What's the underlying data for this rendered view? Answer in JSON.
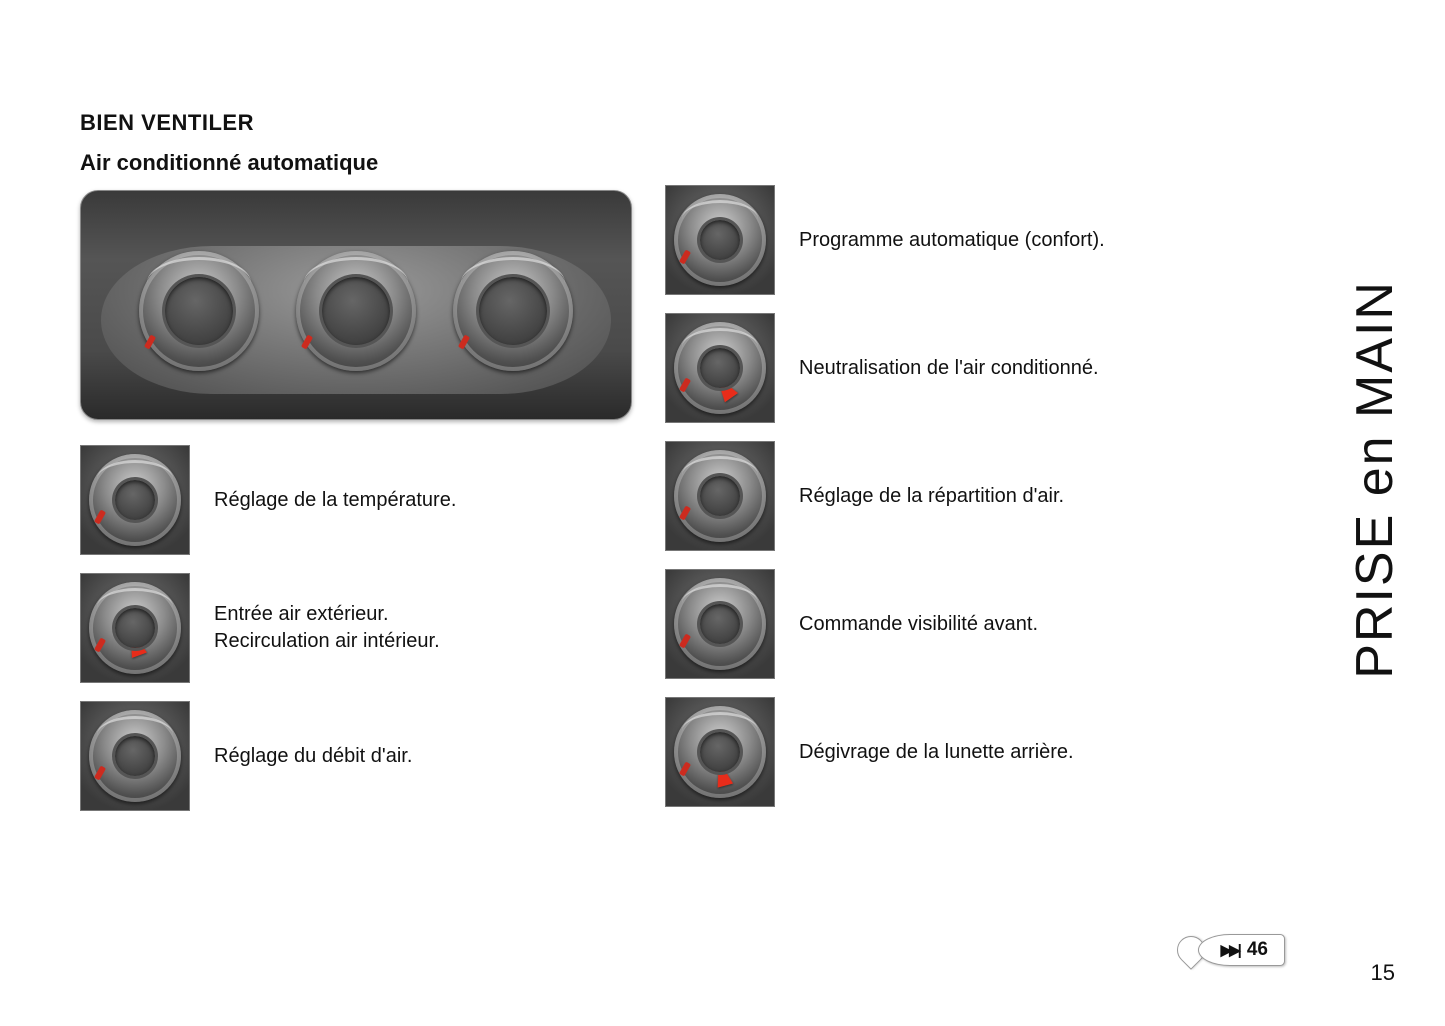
{
  "heading": "BIEN VENTILER",
  "subheading": "Air conditionné automatique",
  "side_tab": "PRISE en MAIN",
  "page_ref": {
    "icon": "▶▶|",
    "number": "46"
  },
  "page_number": "15",
  "colors": {
    "text": "#111111",
    "background": "#ffffff",
    "border": "#888888",
    "red_marker": "#cc2b1f",
    "arrow": "#e82c1a"
  },
  "left_items": [
    {
      "id": "temp",
      "label": "Réglage de la température.",
      "arrow": false,
      "type": "temperature-dial"
    },
    {
      "id": "recirc",
      "label": "Entrée air extérieur.\nRecirculation air intérieur.",
      "arrow": true,
      "arrow_pos": "center",
      "type": "temperature-dial"
    },
    {
      "id": "flow",
      "label": "Réglage du débit d'air.",
      "arrow": false,
      "type": "fan-dial"
    }
  ],
  "right_items": [
    {
      "id": "auto",
      "label": "Programme automatique (confort).",
      "arrow": false,
      "type": "fan-dial"
    },
    {
      "id": "ac-off",
      "label": "Neutralisation de l'air conditionné.",
      "arrow": true,
      "arrow_pos": "lower-center",
      "type": "fan-dial"
    },
    {
      "id": "distrib",
      "label": "Réglage de la répartition d'air.",
      "arrow": false,
      "type": "distribution-dial"
    },
    {
      "id": "front",
      "label": "Commande visibilité avant.",
      "arrow": false,
      "type": "distribution-dial"
    },
    {
      "id": "rear",
      "label": "Dégivrage de la lunette arrière.",
      "arrow": true,
      "arrow_pos": "lower-center",
      "type": "distribution-dial"
    }
  ]
}
